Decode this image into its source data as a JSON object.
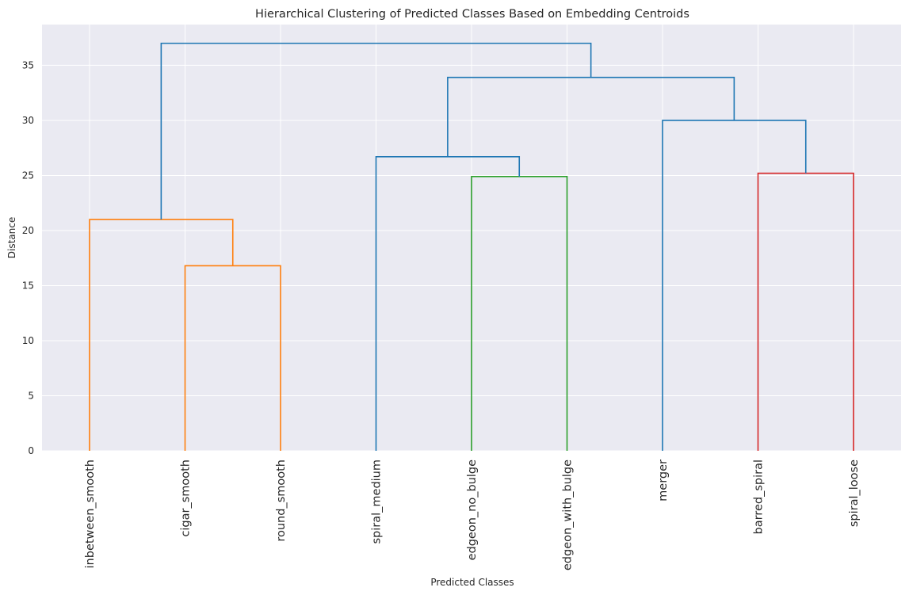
{
  "chart_data": {
    "type": "dendrogram",
    "title": "Hierarchical Clustering of Predicted Classes Based on Embedding Centroids",
    "xlabel": "Predicted Classes",
    "ylabel": "Distance",
    "ylim": [
      0,
      38.7
    ],
    "yticks": [
      0,
      5,
      10,
      15,
      20,
      25,
      30,
      35
    ],
    "grid": true,
    "background": "#eaeaf2",
    "leaves": [
      "inbetween_smooth",
      "cigar_smooth",
      "round_smooth",
      "spiral_medium",
      "edgeon_no_bulge",
      "edgeon_with_bulge",
      "merger",
      "barred_spiral",
      "spiral_loose"
    ],
    "links": [
      {
        "left": [
          1
        ],
        "right": [
          2
        ],
        "height": 16.8,
        "color": "#ff7f0e"
      },
      {
        "left": [
          0
        ],
        "right": [
          1,
          2
        ],
        "height": 21.0,
        "color": "#ff7f0e"
      },
      {
        "left": [
          4
        ],
        "right": [
          5
        ],
        "height": 24.9,
        "color": "#2ca02c"
      },
      {
        "left": [
          7
        ],
        "right": [
          8
        ],
        "height": 25.2,
        "color": "#d62728"
      },
      {
        "left": [
          3
        ],
        "right": [
          4,
          5
        ],
        "height": 26.7,
        "color": "#1f77b4"
      },
      {
        "left": [
          6
        ],
        "right": [
          7,
          8
        ],
        "height": 30.0,
        "color": "#1f77b4"
      },
      {
        "left": [
          3,
          4,
          5
        ],
        "right": [
          6,
          7,
          8
        ],
        "height": 33.9,
        "color": "#1f77b4"
      },
      {
        "left": [
          0,
          1,
          2
        ],
        "right": [
          3,
          4,
          5,
          6,
          7,
          8
        ],
        "height": 37.0,
        "color": "#1f77b4"
      }
    ]
  }
}
